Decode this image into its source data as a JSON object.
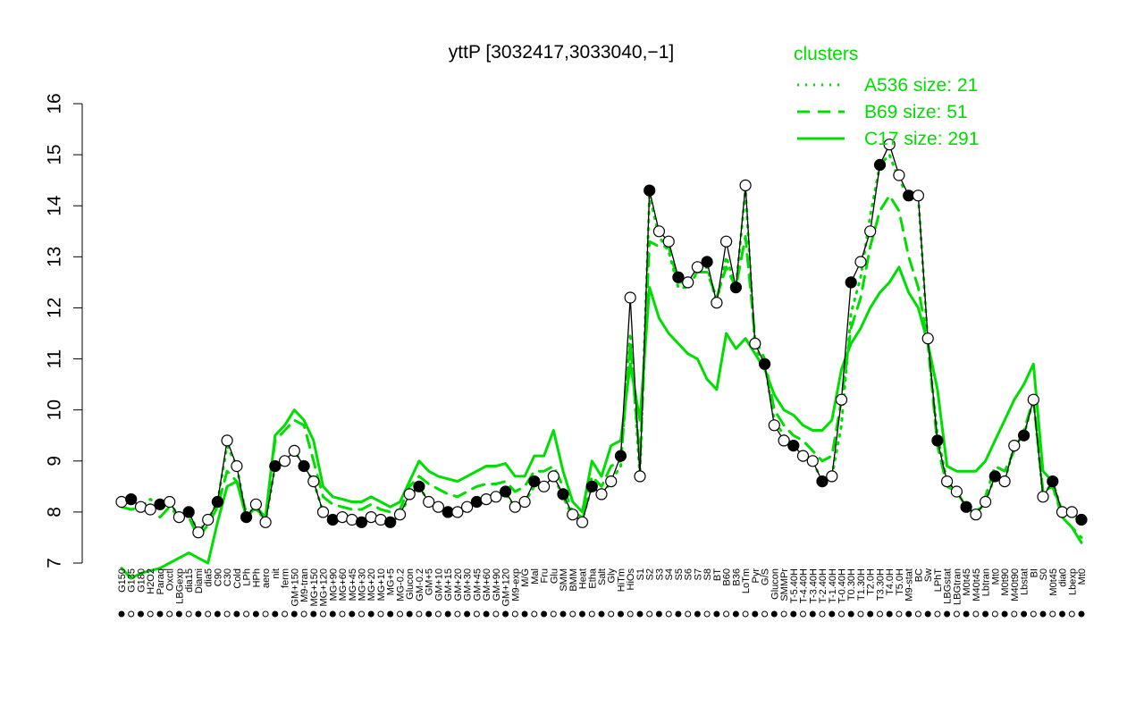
{
  "chart_data": {
    "type": "line",
    "title": "yttP [3032417,3033040,−1]",
    "xlabel": "",
    "ylabel": "",
    "ylim": [
      7,
      16
    ],
    "yticks": [
      7,
      8,
      9,
      10,
      11,
      12,
      13,
      14,
      15,
      16
    ],
    "grid": false,
    "legend": {
      "title": "clusters",
      "placement": "top-right",
      "color": "#00dd00",
      "entries": [
        {
          "label": "A536 size: 21",
          "style": "dotted"
        },
        {
          "label": "B69 size: 51",
          "style": "dashed"
        },
        {
          "label": "C17 size: 291",
          "style": "solid"
        }
      ]
    },
    "colors": {
      "profile": "#000000",
      "clusters": "#00dd00"
    },
    "x_tick_labels": [
      "G150",
      "G135",
      "G180",
      "H2O2",
      "Paraq",
      "Oxctl",
      "LBGexp",
      "dia15",
      "Diami",
      "dia5",
      "C90",
      "C30",
      "Cold",
      "LPh",
      "HPh",
      "aero",
      "nit",
      "ferm",
      "GM+150",
      "M9-tran",
      "MG+150",
      "MG+120",
      "MG+90",
      "MG+60",
      "MG+45",
      "MG+30",
      "MG+20",
      "MG+10",
      "MG+5",
      "MG-0.2",
      "Glucon",
      "GM-0.2",
      "GM+5",
      "GM+10",
      "GM+15",
      "GM+20",
      "GM+30",
      "GM+45",
      "GM+60",
      "GM+90",
      "GM+120",
      "M9-exp",
      "M/G",
      "Mal",
      "Fru",
      "Glu",
      "SMM",
      "BMM",
      "Heat",
      "Etha",
      "Salt",
      "Gly",
      "HiTm",
      "HiOs",
      "S1",
      "S2",
      "S3",
      "S4",
      "S5",
      "S6",
      "S7",
      "S8",
      "BT",
      "B60",
      "B36",
      "LoTm",
      "Pyr",
      "G/S",
      "Glucon",
      "SMMPr",
      "T-5.40H",
      "T-4.40H",
      "T-3.40H",
      "T-2.40H",
      "T-1.40H",
      "T-0.40H",
      "T0.30H",
      "T1.30H",
      "T2.0H",
      "T3.30H",
      "T4.0H",
      "T5.0H",
      "M9-stat",
      "BC",
      "Sw",
      "LPhT",
      "LBGstat",
      "LBGtran",
      "M0t45",
      "M40t45",
      "Lbtran",
      "Mt0",
      "M0t90",
      "M40t90",
      "Lbstat",
      "BI",
      "S0",
      "M0t45",
      "dia0",
      "Lbexp",
      "Mt0"
    ],
    "series": [
      {
        "values": [
          8.2,
          8.2,
          8.1,
          8.25,
          8.1,
          8.2,
          7.9,
          8.0,
          7.6,
          7.85,
          8.2,
          9.3,
          8.9,
          7.9,
          8.1,
          7.8,
          8.9,
          9.0,
          9.2,
          8.9,
          8.6,
          8.0,
          7.85,
          7.9,
          7.85,
          7.8,
          7.9,
          7.85,
          7.75,
          7.95,
          8.3,
          8.5,
          8.2,
          8.1,
          8.0,
          7.95,
          8.1,
          8.2,
          8.25,
          8.3,
          8.35,
          8.1,
          8.2,
          8.5,
          8.45,
          8.7,
          8.3,
          7.9,
          7.85,
          8.5,
          8.3,
          8.6,
          8.9,
          11.5,
          8.7,
          14.2,
          13.4,
          13.1,
          12.4,
          12.4,
          12.7,
          12.8,
          12.1,
          13.0,
          12.4,
          14.3,
          11.2,
          10.9,
          9.8,
          9.5,
          9.3,
          9.1,
          9.0,
          8.6,
          8.7,
          9.7,
          11.9,
          12.6,
          13.8,
          14.8,
          15.0,
          14.5,
          14.2,
          14.2,
          11.3,
          9.5,
          8.6,
          8.4,
          8.1,
          7.95,
          8.2,
          8.7,
          8.6,
          9.3,
          9.5,
          10.2,
          8.3,
          8.6,
          8.0,
          7.9,
          7.85
        ]
      },
      {
        "values": [
          8.1,
          8.05,
          8.1,
          8.0,
          7.9,
          8.1,
          7.9,
          7.9,
          7.5,
          7.75,
          8.1,
          8.8,
          8.6,
          8.0,
          8.05,
          7.9,
          9.4,
          9.6,
          9.8,
          9.7,
          9.0,
          8.3,
          8.15,
          8.1,
          8.05,
          8.05,
          8.15,
          8.05,
          8.0,
          8.05,
          8.5,
          8.7,
          8.55,
          8.45,
          8.35,
          8.3,
          8.4,
          8.5,
          8.55,
          8.55,
          8.6,
          8.4,
          8.5,
          8.8,
          8.8,
          8.9,
          8.5,
          8.0,
          7.9,
          8.7,
          8.5,
          8.9,
          9.0,
          11.3,
          9.0,
          13.3,
          13.2,
          13.2,
          12.5,
          12.5,
          12.7,
          12.7,
          12.2,
          12.8,
          12.4,
          13.4,
          11.4,
          11.0,
          10.0,
          9.7,
          9.5,
          9.4,
          9.2,
          9.0,
          9.1,
          10.2,
          11.6,
          12.2,
          13.2,
          13.9,
          14.2,
          13.9,
          13.0,
          12.4,
          11.3,
          9.3,
          8.5,
          8.4,
          8.1,
          7.95,
          8.3,
          8.9,
          8.8,
          9.2,
          9.6,
          10.2,
          8.4,
          8.5,
          7.9,
          7.7,
          7.5
        ]
      },
      {
        "values": [
          6.9,
          6.7,
          6.8,
          6.85,
          6.9,
          7.0,
          7.1,
          7.2,
          7.1,
          7.0,
          7.8,
          8.5,
          8.6,
          7.9,
          8.1,
          7.9,
          9.5,
          9.7,
          10.0,
          9.8,
          9.4,
          8.5,
          8.3,
          8.25,
          8.2,
          8.2,
          8.3,
          8.2,
          8.1,
          8.2,
          8.6,
          9.0,
          8.8,
          8.7,
          8.65,
          8.6,
          8.7,
          8.8,
          8.9,
          8.9,
          8.95,
          8.7,
          8.7,
          9.1,
          9.1,
          9.6,
          8.8,
          8.2,
          8.0,
          9.0,
          8.7,
          9.3,
          9.4,
          10.9,
          9.8,
          12.4,
          11.8,
          11.5,
          11.3,
          11.1,
          11.0,
          10.6,
          10.4,
          11.5,
          11.2,
          11.4,
          11.1,
          10.8,
          10.3,
          10.0,
          9.9,
          9.7,
          9.6,
          9.6,
          9.8,
          10.8,
          11.3,
          11.6,
          12.0,
          12.3,
          12.5,
          12.8,
          12.3,
          12.0,
          11.3,
          10.4,
          8.9,
          8.8,
          8.8,
          8.8,
          9.0,
          9.4,
          9.8,
          10.2,
          10.5,
          10.9,
          8.8,
          8.6,
          7.9,
          7.7,
          7.4
        ]
      },
      {
        "values": [
          8.2,
          8.25,
          8.1,
          8.05,
          8.15,
          8.2,
          7.9,
          8.0,
          7.6,
          7.85,
          8.2,
          9.4,
          8.9,
          7.9,
          8.15,
          7.8,
          8.9,
          9.0,
          9.2,
          8.9,
          8.6,
          8.0,
          7.85,
          7.9,
          7.85,
          7.8,
          7.9,
          7.85,
          7.8,
          7.95,
          8.35,
          8.5,
          8.2,
          8.1,
          8.0,
          8.0,
          8.1,
          8.2,
          8.25,
          8.3,
          8.4,
          8.1,
          8.2,
          8.6,
          8.5,
          8.7,
          8.35,
          7.95,
          7.8,
          8.5,
          8.35,
          8.6,
          9.1,
          12.2,
          8.7,
          14.3,
          13.5,
          13.3,
          12.6,
          12.5,
          12.8,
          12.9,
          12.1,
          13.3,
          12.4,
          14.4,
          11.3,
          10.9,
          9.7,
          9.4,
          9.3,
          9.1,
          9.0,
          8.6,
          8.7,
          10.2,
          12.5,
          12.9,
          13.5,
          14.8,
          15.2,
          14.6,
          14.2,
          14.2,
          11.4,
          9.4,
          8.6,
          8.4,
          8.1,
          7.95,
          8.2,
          8.7,
          8.6,
          9.3,
          9.5,
          10.2,
          8.3,
          8.6,
          8.0,
          8.0,
          7.85
        ]
      }
    ],
    "series_styles": [
      "dotted",
      "dashed",
      "solid",
      "points"
    ]
  }
}
